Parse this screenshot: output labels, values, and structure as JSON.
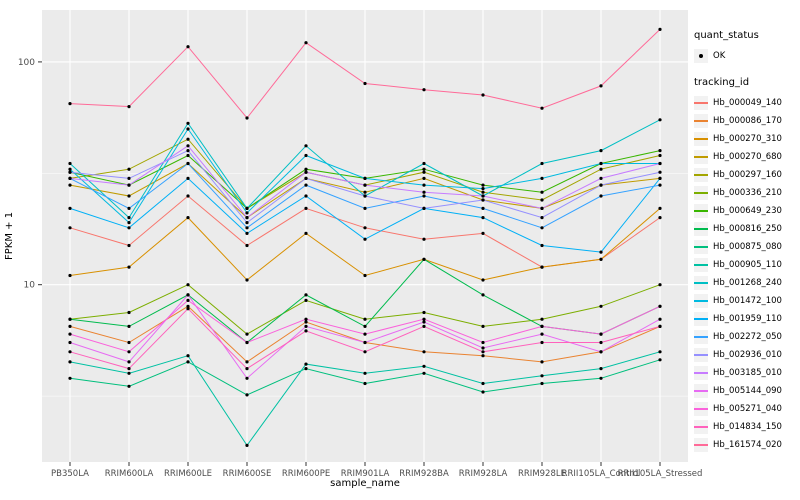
{
  "chart_data": {
    "type": "line",
    "title": "",
    "xlabel": "sample_name",
    "ylabel": "FPKM + 1",
    "y_scale": "log10",
    "y_ticks": [
      100,
      10
    ],
    "y_minor_ticks": [
      3.162,
      31.62
    ],
    "ylim": [
      1.6,
      171
    ],
    "panel_bg": "#EBEBEB",
    "grid_color": "#FFFFFF",
    "point_color": "#000000",
    "legend_position": "right",
    "categories": [
      "PB350LA",
      "RRIM600LA",
      "RRIM600LE",
      "RRIM600SE",
      "RRIM600PE",
      "RRIM901LA",
      "RRIM928BA",
      "RRIM928LA",
      "RRIM928LE",
      "RRII105LA_Control",
      "RRII105LA_Stressed"
    ],
    "series": [
      {
        "name": "Hb_000049_140",
        "color": "#F8766D",
        "values": [
          18,
          15,
          25,
          15,
          22,
          18,
          16,
          17,
          12,
          13,
          20
        ]
      },
      {
        "name": "Hb_000086_170",
        "color": "#EA8331",
        "values": [
          6.5,
          5.5,
          8,
          4.5,
          6.8,
          5.5,
          5,
          4.8,
          4.5,
          5,
          6.5
        ]
      },
      {
        "name": "Hb_000270_310",
        "color": "#D89000",
        "values": [
          11,
          12,
          20,
          10.5,
          17,
          11,
          13,
          10.5,
          12,
          13,
          22
        ]
      },
      {
        "name": "Hb_000270_680",
        "color": "#C09B00",
        "values": [
          28,
          25,
          35,
          20,
          30,
          26,
          30,
          24,
          22,
          28,
          30
        ]
      },
      {
        "name": "Hb_000297_160",
        "color": "#A3A500",
        "values": [
          30,
          33,
          45,
          22,
          32,
          28,
          32,
          26,
          24,
          33,
          38
        ]
      },
      {
        "name": "Hb_000336_210",
        "color": "#7CAE00",
        "values": [
          7,
          7.5,
          10,
          6,
          8.5,
          7,
          7.5,
          6.5,
          7,
          8,
          10
        ]
      },
      {
        "name": "Hb_000649_230",
        "color": "#39B600",
        "values": [
          32,
          28,
          38,
          22,
          33,
          30,
          33,
          28,
          26,
          35,
          40
        ]
      },
      {
        "name": "Hb_000816_250",
        "color": "#00BB4E",
        "values": [
          7,
          6.5,
          9,
          5.5,
          9,
          6.5,
          13,
          9,
          6.5,
          6,
          8
        ]
      },
      {
        "name": "Hb_000875_080",
        "color": "#00BF7D",
        "values": [
          3.8,
          3.5,
          4.5,
          3.2,
          4.2,
          3.6,
          4,
          3.3,
          3.6,
          3.8,
          4.6
        ]
      },
      {
        "name": "Hb_000905_110",
        "color": "#00C1A3",
        "values": [
          4.5,
          4,
          4.8,
          1.9,
          4.4,
          4,
          4.3,
          3.6,
          3.9,
          4.2,
          5
        ]
      },
      {
        "name": "Hb_001268_240",
        "color": "#00BFC4",
        "values": [
          35,
          20,
          53,
          22,
          42,
          25,
          35,
          25,
          35,
          40,
          55
        ]
      },
      {
        "name": "Hb_001472_100",
        "color": "#00BAE0",
        "values": [
          33,
          19,
          50,
          21,
          38,
          30,
          28,
          27,
          30,
          35,
          35
        ]
      },
      {
        "name": "Hb_001959_110",
        "color": "#00B0F6",
        "values": [
          22,
          18,
          30,
          17,
          25,
          16,
          22,
          20,
          15,
          14,
          30
        ]
      },
      {
        "name": "Hb_002272_050",
        "color": "#35A2FF",
        "values": [
          30,
          22,
          35,
          18,
          28,
          22,
          25,
          22,
          18,
          25,
          28
        ]
      },
      {
        "name": "Hb_002936_010",
        "color": "#9590FF",
        "values": [
          32,
          30,
          40,
          19,
          30,
          25,
          22,
          24,
          20,
          28,
          32
        ]
      },
      {
        "name": "Hb_003185_010",
        "color": "#C77CFF",
        "values": [
          30,
          28,
          42,
          20,
          32,
          28,
          26,
          25,
          22,
          30,
          35
        ]
      },
      {
        "name": "Hb_005144_090",
        "color": "#E76BF3",
        "values": [
          5.5,
          4.5,
          9,
          3.8,
          6.5,
          5.5,
          6.8,
          5.2,
          6,
          5,
          7
        ]
      },
      {
        "name": "Hb_005271_040",
        "color": "#FA62DB",
        "values": [
          6,
          5,
          8.5,
          5.5,
          7,
          6,
          7,
          5.5,
          6.5,
          6,
          8
        ]
      },
      {
        "name": "Hb_014834_150",
        "color": "#FF62BC",
        "values": [
          5,
          4.2,
          7.8,
          4.2,
          6.2,
          5,
          6.5,
          5,
          5.5,
          5.5,
          6.5
        ]
      },
      {
        "name": "Hb_161574_020",
        "color": "#FF6A98",
        "values": [
          65,
          63,
          117,
          56,
          122,
          80,
          75,
          71,
          62,
          78,
          140
        ]
      }
    ]
  },
  "legend": {
    "quant_status_title": "quant_status",
    "quant_status_items": [
      {
        "label": "OK"
      }
    ],
    "tracking_id_title": "tracking_id"
  }
}
